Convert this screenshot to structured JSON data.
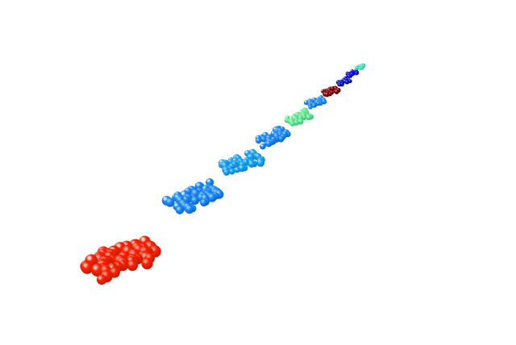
{
  "scene": {
    "background": "#ffffff",
    "clusters": [
      {
        "id": "cluster-1",
        "color": "#ff2200",
        "shade": "#b81800"
      },
      {
        "id": "cluster-2",
        "color": "#1e8fff",
        "shade": "#0a5ec0"
      },
      {
        "id": "cluster-3",
        "color": "#1aa6ff",
        "shade": "#0878c0"
      },
      {
        "id": "cluster-4",
        "color": "#1e8fff",
        "shade": "#0a5ec0"
      },
      {
        "id": "cluster-5",
        "color": "#66ee99",
        "shade": "#2eb865"
      },
      {
        "id": "cluster-6",
        "color": "#1e8fff",
        "shade": "#0a5ec0"
      },
      {
        "id": "cluster-7",
        "color": "#8b0000",
        "shade": "#4a0000"
      },
      {
        "id": "cluster-8",
        "color": "#0010cc",
        "shade": "#000070"
      },
      {
        "id": "cluster-9",
        "color": "#0000ff",
        "shade": "#00008a"
      },
      {
        "id": "cluster-10",
        "color": "#44e8bb",
        "shade": "#17a981"
      }
    ]
  }
}
